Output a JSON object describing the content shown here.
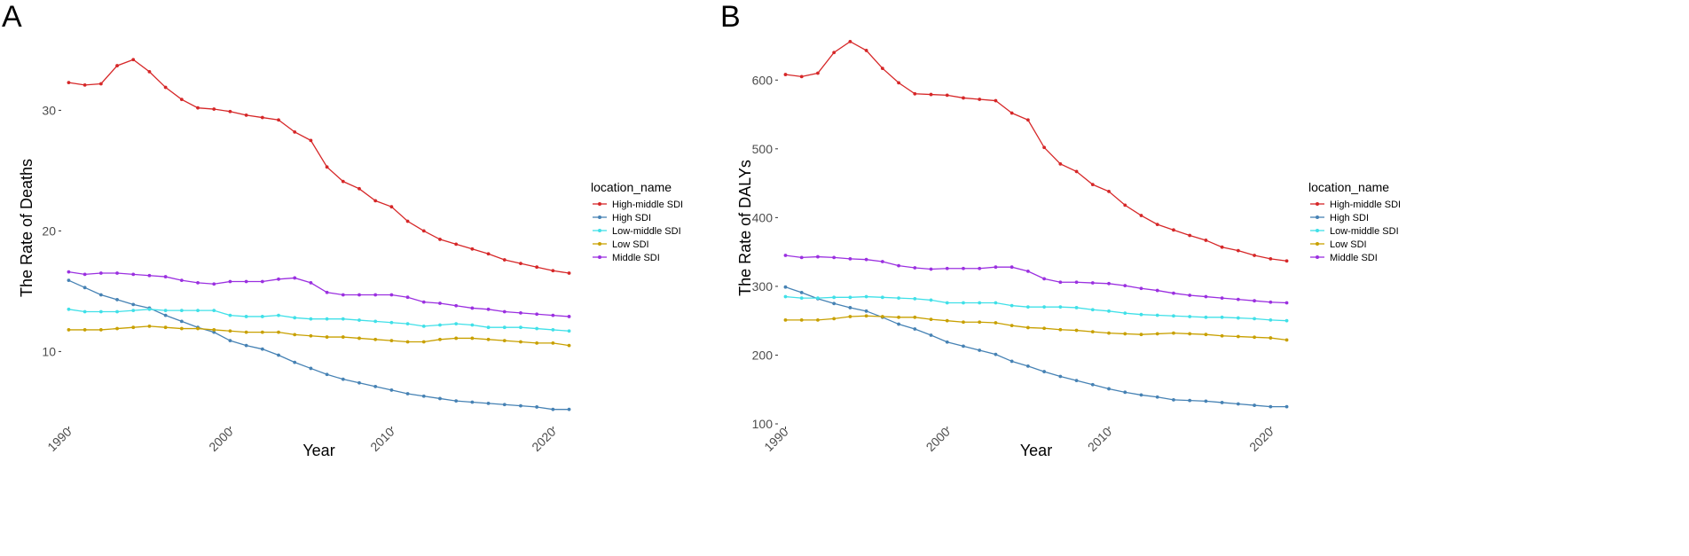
{
  "chart_data": [
    {
      "panel": "A",
      "type": "line",
      "xlabel": "Year",
      "ylabel": "The Rate of Deaths",
      "xlim": [
        1989.7,
        2021.3
      ],
      "ylim": [
        4.0,
        36.5
      ],
      "xticks": [
        1990,
        2000,
        2010,
        2020
      ],
      "yticks": [
        10,
        20,
        30
      ],
      "legend_title": "location_name",
      "x": [
        1990,
        1991,
        1992,
        1993,
        1994,
        1995,
        1996,
        1997,
        1998,
        1999,
        2000,
        2001,
        2002,
        2003,
        2004,
        2005,
        2006,
        2007,
        2008,
        2009,
        2010,
        2011,
        2012,
        2013,
        2014,
        2015,
        2016,
        2017,
        2018,
        2019,
        2020,
        2021
      ],
      "series": [
        {
          "name": "High-middle SDI",
          "color": "#d62728",
          "values": [
            32.3,
            32.1,
            32.2,
            33.7,
            34.2,
            33.2,
            31.9,
            30.9,
            30.2,
            30.1,
            29.9,
            29.6,
            29.4,
            29.2,
            28.2,
            27.5,
            25.3,
            24.1,
            23.5,
            22.5,
            22.0,
            20.8,
            20.0,
            19.3,
            18.9,
            18.5,
            18.1,
            17.6,
            17.3,
            17.0,
            16.7,
            16.5
          ]
        },
        {
          "name": "High SDI",
          "color": "#4682b4",
          "values": [
            15.9,
            15.3,
            14.7,
            14.3,
            13.9,
            13.6,
            13.0,
            12.5,
            12.0,
            11.6,
            10.9,
            10.5,
            10.2,
            9.7,
            9.1,
            8.6,
            8.1,
            7.7,
            7.4,
            7.1,
            6.8,
            6.5,
            6.3,
            6.1,
            5.9,
            5.8,
            5.7,
            5.6,
            5.5,
            5.4,
            5.2,
            5.2
          ]
        },
        {
          "name": "Low-middle SDI",
          "color": "#40e0e8",
          "values": [
            13.5,
            13.3,
            13.3,
            13.3,
            13.4,
            13.5,
            13.4,
            13.4,
            13.4,
            13.4,
            13.0,
            12.9,
            12.9,
            13.0,
            12.8,
            12.7,
            12.7,
            12.7,
            12.6,
            12.5,
            12.4,
            12.3,
            12.1,
            12.2,
            12.3,
            12.2,
            12.0,
            12.0,
            12.0,
            11.9,
            11.8,
            11.7
          ]
        },
        {
          "name": "Low SDI",
          "color": "#c8a000",
          "values": [
            11.8,
            11.8,
            11.8,
            11.9,
            12.0,
            12.1,
            12.0,
            11.9,
            11.9,
            11.8,
            11.7,
            11.6,
            11.6,
            11.6,
            11.4,
            11.3,
            11.2,
            11.2,
            11.1,
            11.0,
            10.9,
            10.8,
            10.8,
            11.0,
            11.1,
            11.1,
            11.0,
            10.9,
            10.8,
            10.7,
            10.7,
            10.5
          ]
        },
        {
          "name": "Middle SDI",
          "color": "#9b30e0",
          "values": [
            16.6,
            16.4,
            16.5,
            16.5,
            16.4,
            16.3,
            16.2,
            15.9,
            15.7,
            15.6,
            15.8,
            15.8,
            15.8,
            16.0,
            16.1,
            15.7,
            14.9,
            14.7,
            14.7,
            14.7,
            14.7,
            14.5,
            14.1,
            14.0,
            13.8,
            13.6,
            13.5,
            13.3,
            13.2,
            13.1,
            13.0,
            12.9
          ]
        }
      ]
    },
    {
      "panel": "B",
      "type": "line",
      "xlabel": "Year",
      "ylabel": "The Rate of DALYs",
      "xlim": [
        1989.7,
        2021.3
      ],
      "ylim": [
        100,
        670
      ],
      "xticks": [
        1990,
        2000,
        2010,
        2020
      ],
      "yticks": [
        100,
        200,
        300,
        400,
        500,
        600
      ],
      "legend_title": "location_name",
      "x": [
        1990,
        1991,
        1992,
        1993,
        1994,
        1995,
        1996,
        1997,
        1998,
        1999,
        2000,
        2001,
        2002,
        2003,
        2004,
        2005,
        2006,
        2007,
        2008,
        2009,
        2010,
        2011,
        2012,
        2013,
        2014,
        2015,
        2016,
        2017,
        2018,
        2019,
        2020,
        2021
      ],
      "series": [
        {
          "name": "High-middle SDI",
          "color": "#d62728",
          "values": [
            608,
            605,
            610,
            640,
            656,
            643,
            617,
            596,
            580,
            579,
            578,
            574,
            572,
            570,
            552,
            542,
            502,
            478,
            467,
            448,
            438,
            418,
            403,
            390,
            382,
            374,
            367,
            357,
            352,
            345,
            340,
            337
          ]
        },
        {
          "name": "High SDI",
          "color": "#4682b4",
          "values": [
            299,
            291,
            282,
            275,
            269,
            264,
            255,
            245,
            238,
            229,
            219,
            213,
            207,
            201,
            191,
            184,
            176,
            169,
            163,
            157,
            151,
            146,
            142,
            139,
            135,
            134,
            133,
            131,
            129,
            127,
            125,
            125
          ]
        },
        {
          "name": "Low-middle SDI",
          "color": "#40e0e8",
          "values": [
            285,
            283,
            283,
            284,
            284,
            285,
            284,
            283,
            282,
            280,
            276,
            276,
            276,
            276,
            272,
            270,
            270,
            270,
            269,
            266,
            264,
            261,
            259,
            258,
            257,
            256,
            255,
            255,
            254,
            253,
            251,
            250
          ]
        },
        {
          "name": "Low SDI",
          "color": "#c8a000",
          "values": [
            251,
            251,
            251,
            253,
            256,
            257,
            256,
            255,
            255,
            252,
            250,
            248,
            248,
            247,
            243,
            240,
            239,
            237,
            236,
            234,
            232,
            231,
            230,
            231,
            232,
            231,
            230,
            228,
            227,
            226,
            225,
            222
          ]
        },
        {
          "name": "Middle SDI",
          "color": "#9b30e0",
          "values": [
            345,
            342,
            343,
            342,
            340,
            339,
            336,
            330,
            327,
            325,
            326,
            326,
            326,
            328,
            328,
            322,
            311,
            306,
            306,
            305,
            304,
            301,
            297,
            294,
            290,
            287,
            285,
            283,
            281,
            279,
            277,
            276
          ]
        }
      ]
    }
  ]
}
